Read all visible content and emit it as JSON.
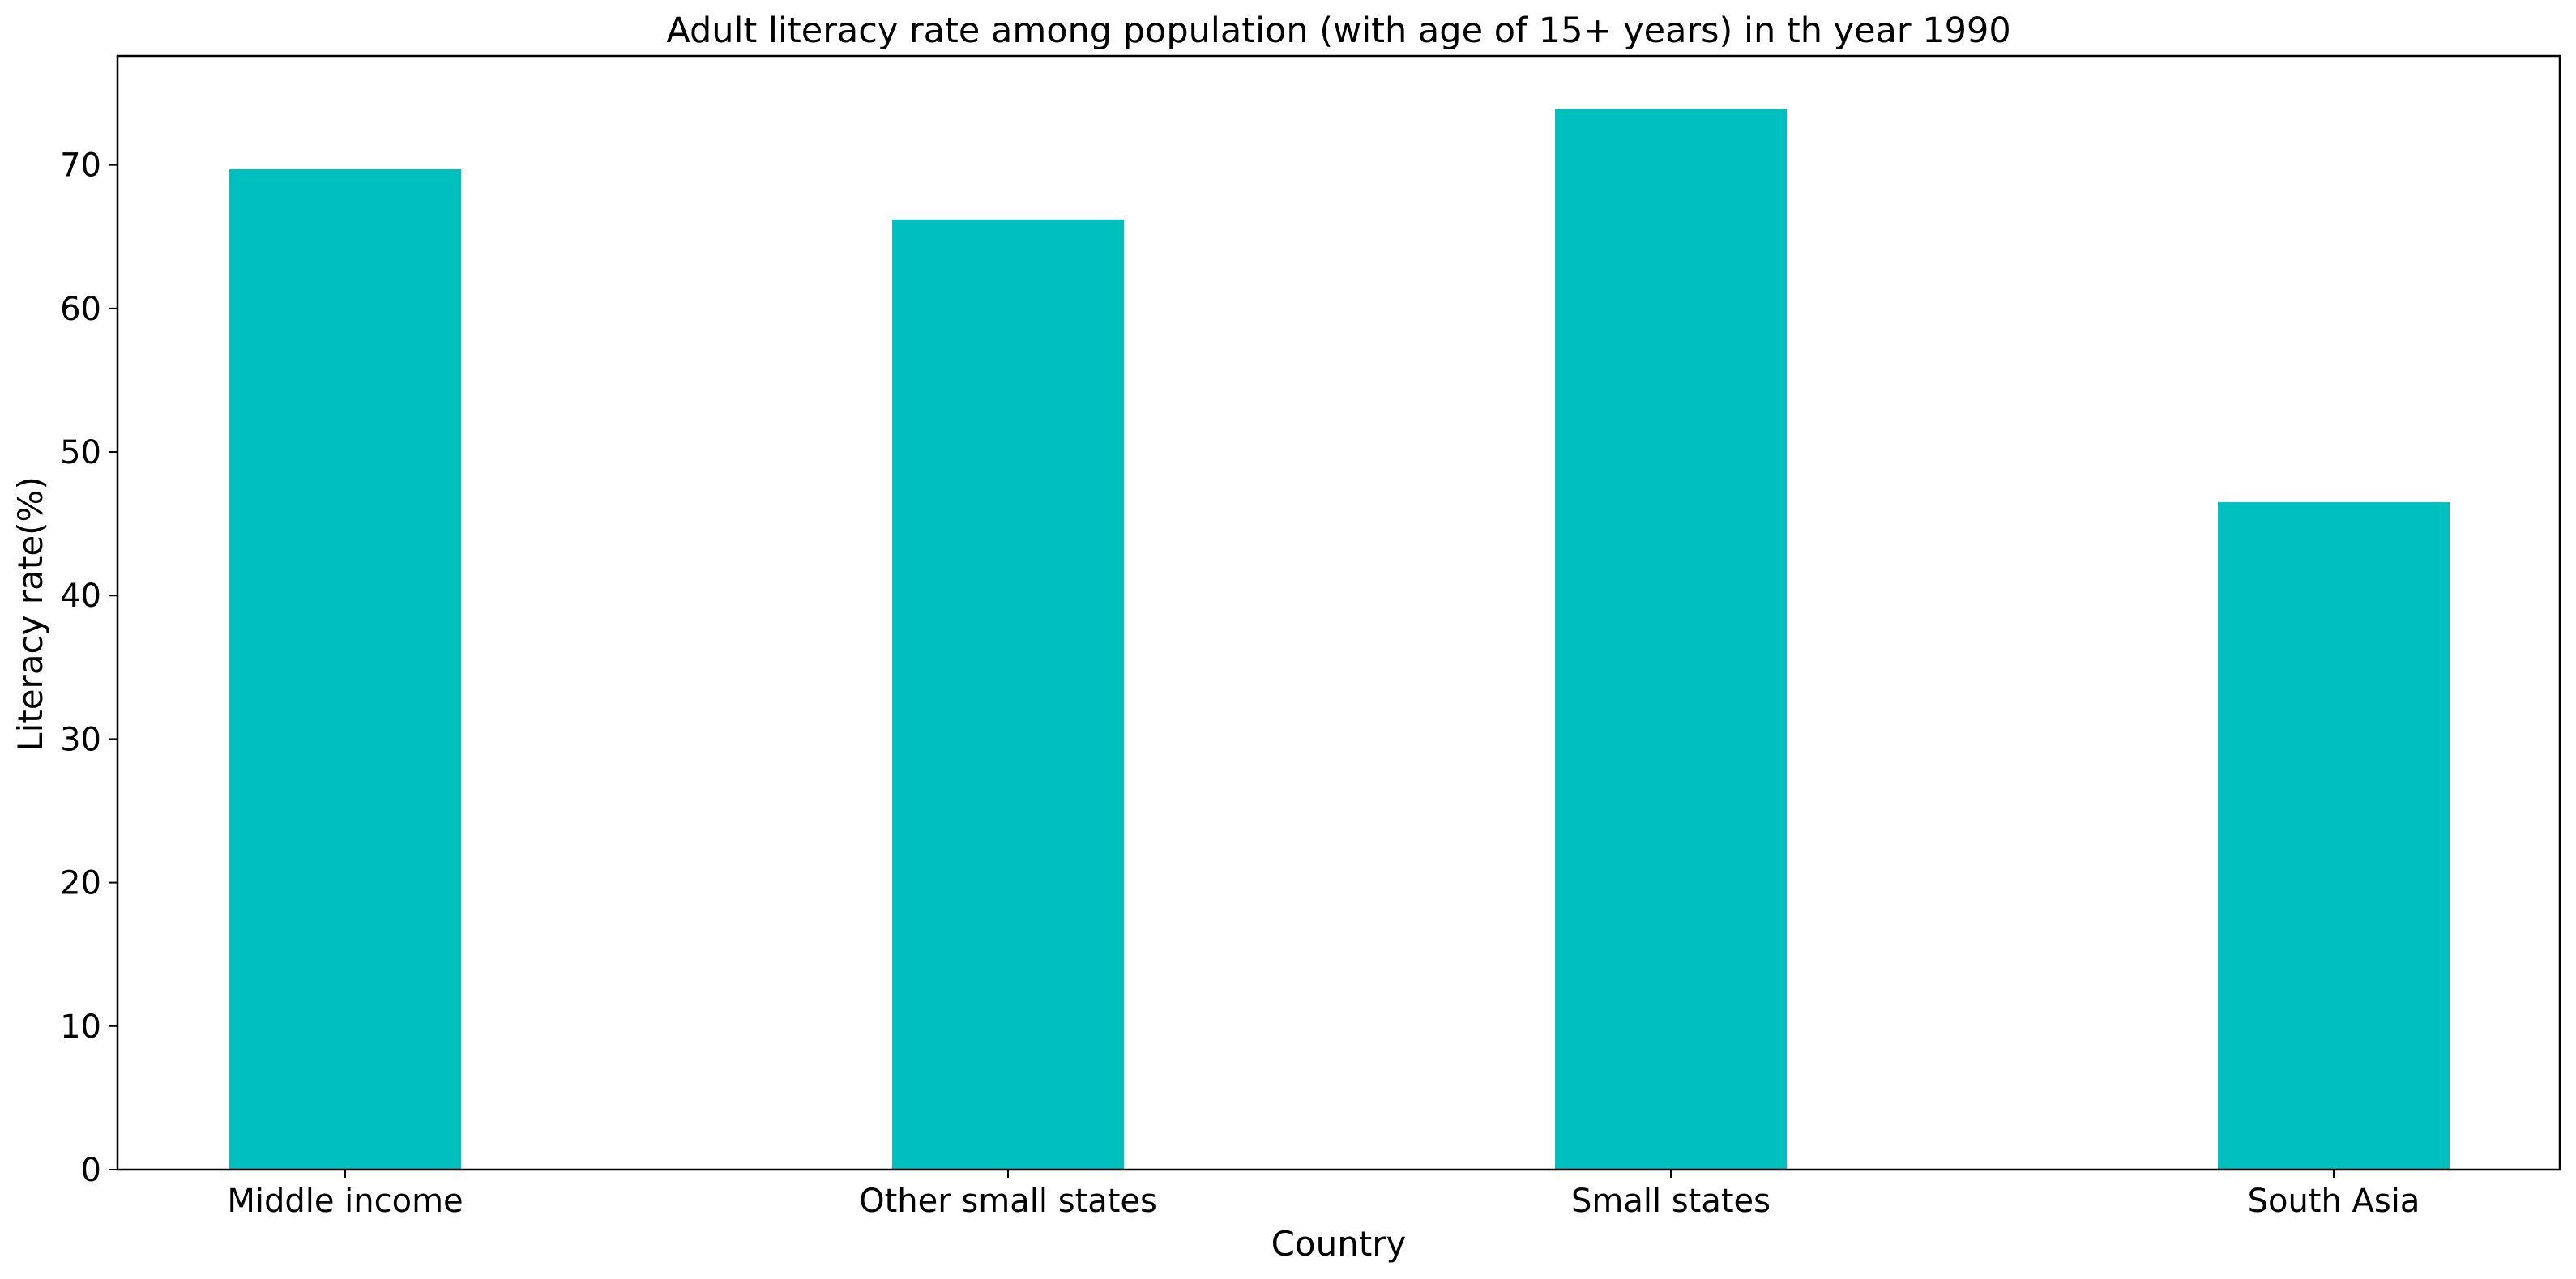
{
  "chart_data": {
    "type": "bar",
    "title": "Adult literacy rate among population (with age of 15+ years) in th year 1990",
    "xlabel": "Country",
    "ylabel": "Literacy rate(%)",
    "categories": [
      "Middle income",
      "Other small states",
      "Small states",
      "South Asia"
    ],
    "values": [
      69.7,
      66.2,
      73.9,
      46.5
    ],
    "ylim": [
      0,
      77.6
    ],
    "yticks": [
      0,
      10,
      20,
      30,
      40,
      50,
      60,
      70
    ],
    "bar_color": "#00BFBF",
    "grid": false,
    "legend": "none"
  }
}
